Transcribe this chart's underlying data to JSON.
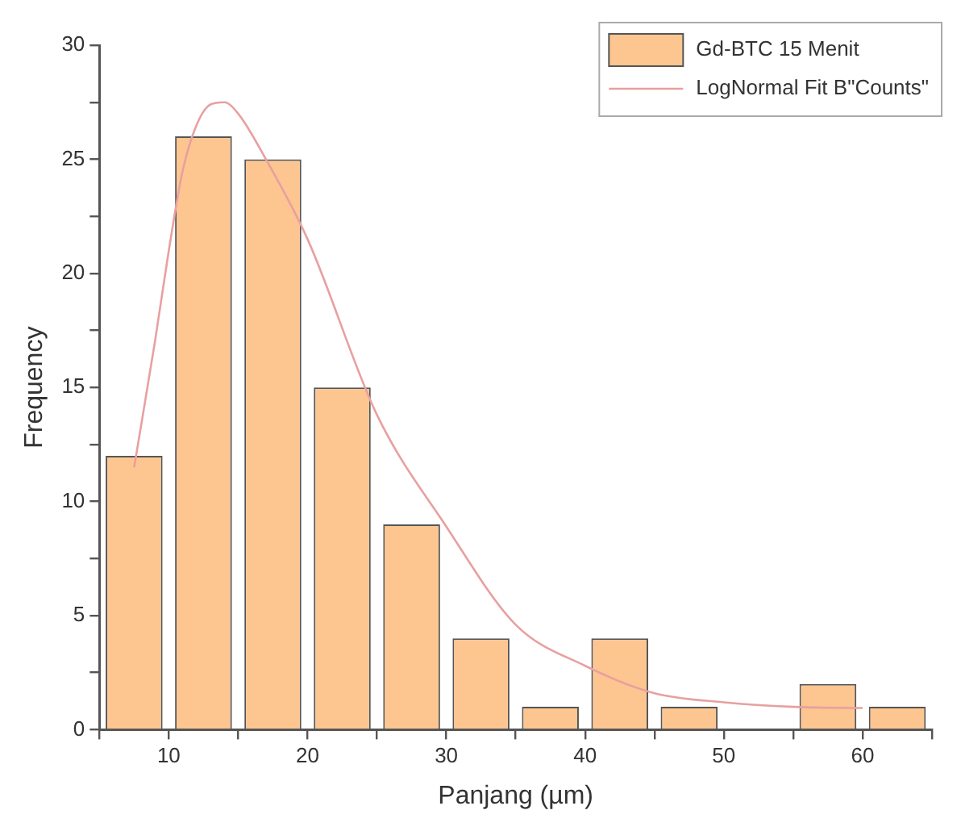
{
  "chart_data": {
    "type": "histogram",
    "xlabel": "Panjang (µm)",
    "ylabel": "Frequency",
    "bins": [
      5,
      10,
      15,
      20,
      25,
      30,
      35,
      40,
      45,
      50,
      55,
      60,
      65
    ],
    "series": [
      {
        "name": "Gd-BTC 15 Menit",
        "color": "#fdc590",
        "values": [
          12,
          26,
          25,
          15,
          9,
          4,
          1,
          4,
          1,
          0,
          2,
          1
        ]
      },
      {
        "name": "LogNormal Fit B\"Counts\"",
        "type": "line",
        "color": "#e8a0a0",
        "x": [
          7.5,
          9,
          10,
          11,
          12,
          13,
          14,
          15,
          17,
          20,
          25,
          30,
          35,
          40,
          45,
          50,
          55,
          60
        ],
        "values": [
          11.5,
          17,
          21,
          24.5,
          26.5,
          27.4,
          27.5,
          27,
          25,
          21.5,
          13.8,
          8.9,
          4.6,
          2.8,
          1.6,
          1.2,
          1,
          0.95
        ]
      }
    ],
    "xlim": [
      5,
      65
    ],
    "ylim": [
      0,
      30
    ],
    "xticks": [
      {
        "value": 5,
        "label": null
      },
      10,
      {
        "value": 15,
        "label": null
      },
      20,
      {
        "value": 25,
        "label": null
      },
      30,
      {
        "value": 35,
        "label": null
      },
      40,
      {
        "value": 45,
        "label": null
      },
      50,
      {
        "value": 55,
        "label": null
      },
      60,
      {
        "value": 65,
        "label": null
      }
    ],
    "yticks": [
      0,
      {
        "value": 2.5,
        "label": null
      },
      5,
      {
        "value": 7.5,
        "label": null
      },
      10,
      {
        "value": 12.5,
        "label": null
      },
      15,
      {
        "value": 17.5,
        "label": null
      },
      20,
      {
        "value": 22.5,
        "label": null
      },
      25,
      {
        "value": 27.5,
        "label": null
      },
      30
    ],
    "grid": false,
    "legend": "top right"
  }
}
